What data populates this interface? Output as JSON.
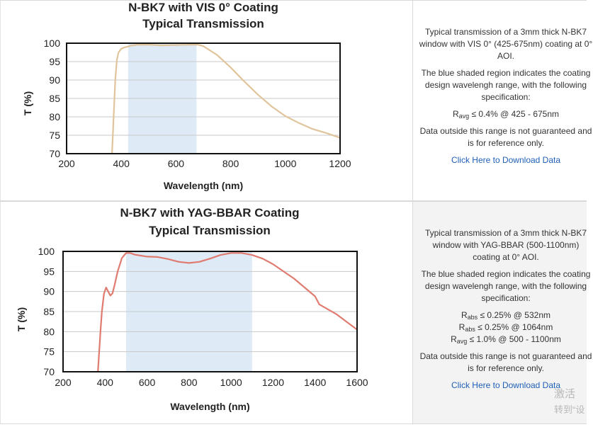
{
  "charts": [
    {
      "chart_data": {
        "type": "line",
        "title": [
          "N-BK7 with VIS 0° Coating",
          "Typical Transmission"
        ],
        "xlabel": "Wavelength (nm)",
        "ylabel": "T (%)",
        "xlim": [
          200,
          1200
        ],
        "ylim": [
          70,
          100
        ],
        "xticks": [
          200,
          400,
          600,
          800,
          1000,
          1200
        ],
        "yticks": [
          70,
          75,
          80,
          85,
          90,
          95,
          100
        ],
        "grid": true,
        "shaded_region": [
          425,
          675
        ],
        "shaded_color": "#deebf7",
        "series": [
          {
            "name": "Transmission",
            "color": "#e0c49b",
            "x": [
              366,
              372,
              378,
              384,
              390,
              400,
              410,
              420,
              440,
              460,
              500,
              550,
              600,
              650,
              680,
              700,
              750,
              800,
              850,
              900,
              950,
              1000,
              1050,
              1100,
              1150,
              1200
            ],
            "y": [
              70,
              80,
              90,
              95.5,
              97.5,
              98.5,
              98.8,
              99,
              99.4,
              99.6,
              99.6,
              99.4,
              99.5,
              99.6,
              99.6,
              99.2,
              96.8,
              93.4,
              89.6,
              86,
              82.8,
              80.2,
              78.3,
              76.7,
              75.6,
              74.3
            ]
          }
        ]
      },
      "description": {
        "intro": "Typical transmission of a 3mm thick N-BK7 window with VIS 0° (425-675nm) coating at 0° AOI.",
        "shaded_text": "The blue shaded region indicates the coating design wavelengh range, with the following specification:",
        "specs": [
          {
            "symbol": "R",
            "sub": "avg",
            "text": " ≤ 0.4% @ 425 - 675nm"
          }
        ],
        "note": "Data outside this range is not guaranteed and is for reference only.",
        "link": "Click Here to Download Data"
      }
    },
    {
      "chart_data": {
        "type": "line",
        "title": [
          "N-BK7 with YAG-BBAR Coating",
          "Typical Transmission"
        ],
        "xlabel": "Wavelength (nm)",
        "ylabel": "T (%)",
        "xlim": [
          200,
          1600
        ],
        "ylim": [
          70,
          100
        ],
        "xticks": [
          200,
          400,
          600,
          800,
          1000,
          1200,
          1400,
          1600
        ],
        "yticks": [
          70,
          75,
          80,
          85,
          90,
          95,
          100
        ],
        "grid": true,
        "shaded_region": [
          500,
          1100
        ],
        "shaded_color": "#deebf7",
        "series": [
          {
            "name": "Transmission",
            "color": "#e07b70",
            "x": [
              366,
              372,
              378,
              385,
              395,
              405,
              415,
              425,
              435,
              445,
              460,
              480,
              500,
              520,
              540,
              600,
              650,
              700,
              750,
              800,
              850,
              900,
              950,
              1000,
              1050,
              1100,
              1150,
              1200,
              1300,
              1400,
              1420,
              1500,
              1600
            ],
            "y": [
              70,
              75,
              80,
              85,
              89.5,
              91,
              90,
              89,
              89.5,
              91.5,
              95,
              98.3,
              99.6,
              99.6,
              99.2,
              98.7,
              98.6,
              98.1,
              97.4,
              97.1,
              97.4,
              98.2,
              99.1,
              99.6,
              99.6,
              99.1,
              98.2,
              96.8,
              93.2,
              88.8,
              86.8,
              84.4,
              80.5
            ]
          }
        ]
      },
      "description": {
        "intro": "Typical transmission of a 3mm thick N-BK7 window with YAG-BBAR (500-1100nm) coating at 0° AOI.",
        "shaded_text": "The blue shaded region indicates the coating design wavelengh range, with the following specification:",
        "specs": [
          {
            "symbol": "R",
            "sub": "abs",
            "text": " ≤ 0.25% @ 532nm"
          },
          {
            "symbol": "R",
            "sub": "abs",
            "text": " ≤ 0.25% @ 1064nm"
          },
          {
            "symbol": "R",
            "sub": "avg",
            "text": " ≤ 1.0% @ 500 - 1100nm"
          }
        ],
        "note": "Data outside this range is not guaranteed and is for reference only.",
        "link": "Click Here to Download Data"
      }
    }
  ],
  "watermark": {
    "line1": "激活",
    "line2": "转到“设"
  }
}
